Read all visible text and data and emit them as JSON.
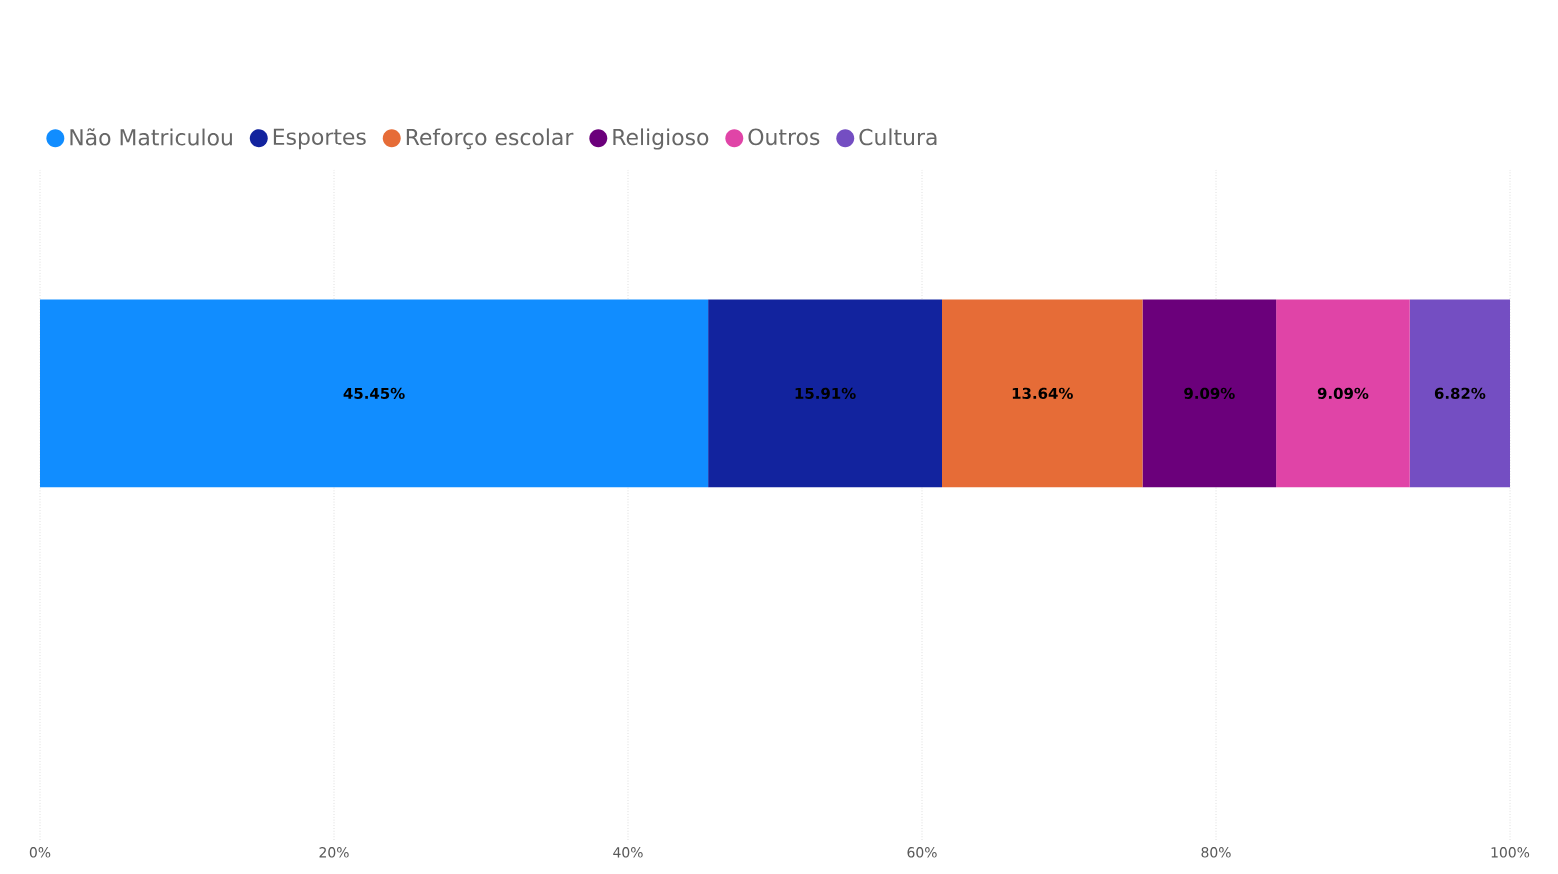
{
  "chart_data": {
    "type": "bar",
    "orientation": "horizontal",
    "stacked": true,
    "categories": [
      null
    ],
    "series": [
      {
        "name": "Não Matriculou",
        "color": "#118dff",
        "values": [
          45.45
        ],
        "value_labels": [
          "45.45%"
        ]
      },
      {
        "name": "Esportes",
        "color": "#12239e",
        "values": [
          15.91
        ],
        "value_labels": [
          "15.91%"
        ]
      },
      {
        "name": "Reforço escolar",
        "color": "#e66c37",
        "values": [
          13.64
        ],
        "value_labels": [
          "13.64%"
        ]
      },
      {
        "name": "Religioso",
        "color": "#6b007b",
        "values": [
          9.09
        ],
        "value_labels": [
          "9.09%"
        ]
      },
      {
        "name": "Outros",
        "color": "#e044a7",
        "values": [
          9.09
        ],
        "value_labels": [
          "9.09%"
        ]
      },
      {
        "name": "Cultura",
        "color": "#744ec2",
        "values": [
          6.82
        ],
        "value_labels": [
          "6.82%"
        ]
      }
    ],
    "xlim": [
      0,
      100
    ],
    "xticks": [
      {
        "value": 0,
        "label": "0%"
      },
      {
        "value": 20,
        "label": "20%"
      },
      {
        "value": 40,
        "label": "40%"
      },
      {
        "value": 60,
        "label": "60%"
      },
      {
        "value": 80,
        "label": "80%"
      },
      {
        "value": 100,
        "label": "100%"
      }
    ],
    "grid": "x",
    "legend": "top left"
  }
}
